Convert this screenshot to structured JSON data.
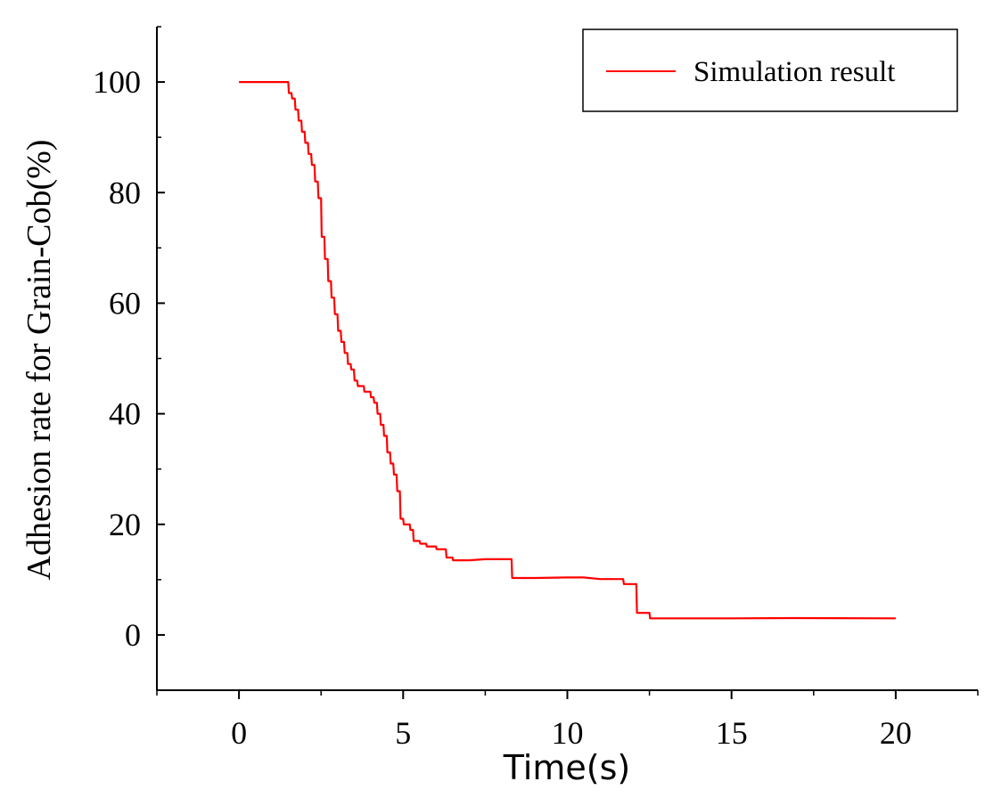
{
  "chart_data": {
    "type": "line",
    "xlabel": "Time(s)",
    "ylabel": "Adhesion rate for Grain-Cob(%)",
    "xlim": [
      -2.5,
      22.5
    ],
    "ylim": [
      -10,
      110
    ],
    "xticks": [
      0,
      5,
      10,
      15,
      20
    ],
    "yticks": [
      0,
      20,
      40,
      60,
      80,
      100
    ],
    "legend_position": "top-right",
    "grid": false,
    "series": [
      {
        "name": "Simulation result",
        "color": "#ff0000",
        "x": [
          0,
          1.5,
          1.52,
          1.6,
          1.62,
          1.7,
          1.72,
          1.8,
          1.82,
          1.9,
          1.92,
          2.0,
          2.02,
          2.1,
          2.12,
          2.2,
          2.22,
          2.3,
          2.32,
          2.4,
          2.42,
          2.5,
          2.52,
          2.6,
          2.62,
          2.7,
          2.72,
          2.8,
          2.82,
          2.9,
          2.92,
          3.0,
          3.02,
          3.1,
          3.12,
          3.2,
          3.22,
          3.3,
          3.32,
          3.4,
          3.42,
          3.5,
          3.52,
          3.6,
          3.62,
          3.8,
          3.82,
          4.0,
          4.02,
          4.1,
          4.12,
          4.2,
          4.22,
          4.3,
          4.32,
          4.4,
          4.42,
          4.5,
          4.52,
          4.6,
          4.62,
          4.7,
          4.72,
          4.8,
          4.82,
          4.9,
          4.92,
          5.0,
          5.02,
          5.2,
          5.22,
          5.3,
          5.32,
          5.5,
          5.52,
          5.7,
          5.72,
          6.0,
          6.02,
          6.3,
          6.32,
          6.5,
          6.52,
          7.0,
          7.5,
          8.0,
          8.3,
          8.32,
          9.0,
          10.0,
          10.5,
          11.0,
          11.7,
          11.72,
          12.1,
          12.12,
          12.5,
          12.52,
          13.0,
          15.0,
          17.0,
          20.0
        ],
        "values": [
          100,
          100,
          98,
          98,
          97,
          97,
          95,
          95,
          93,
          93,
          91,
          91,
          89,
          89,
          87,
          87,
          85,
          85,
          82,
          82,
          79,
          79,
          72,
          72,
          68,
          68,
          64,
          64,
          61,
          61,
          58,
          58,
          55,
          55,
          53,
          53,
          51,
          51,
          49,
          49,
          48,
          48,
          46,
          46,
          45,
          45,
          44,
          44,
          43,
          43,
          42,
          42,
          40,
          40,
          38,
          38,
          36,
          36,
          33,
          33,
          31,
          31,
          29,
          29,
          26,
          26,
          21,
          21,
          20,
          20,
          19,
          19,
          17,
          17,
          16.5,
          16.5,
          16,
          16,
          15.5,
          15.5,
          14,
          14,
          13.5,
          13.5,
          13.7,
          13.7,
          13.7,
          10.3,
          10.3,
          10.4,
          10.4,
          10.1,
          10.1,
          9.2,
          9.2,
          4,
          4,
          3,
          3,
          3,
          3.05,
          3
        ]
      }
    ]
  }
}
